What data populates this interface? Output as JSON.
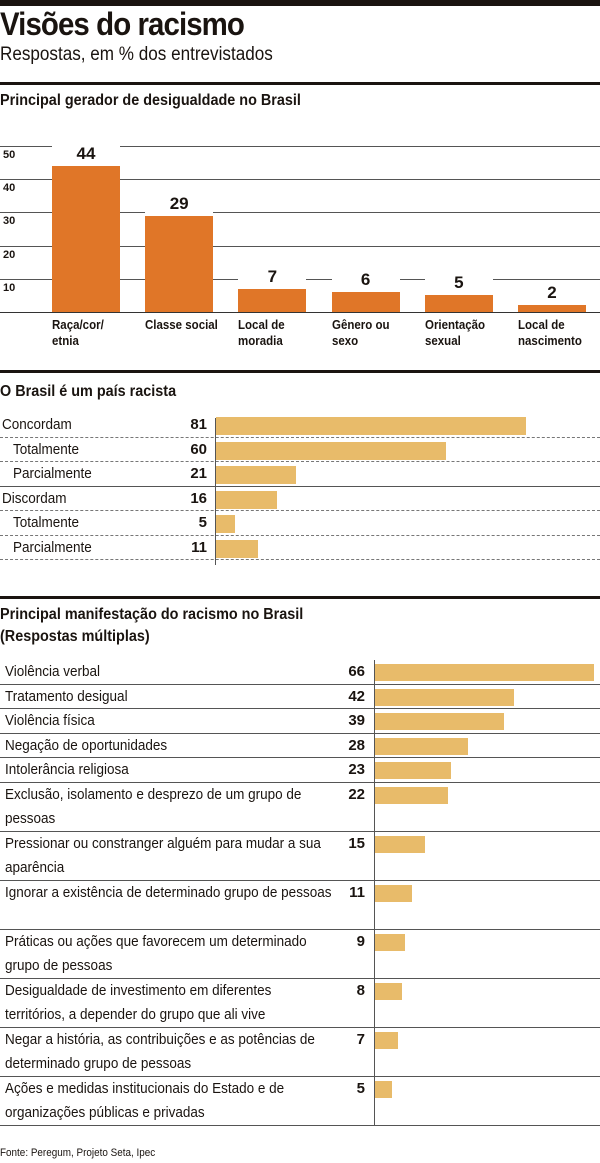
{
  "header": {
    "title": "Visões do racismo",
    "subtitle": "Respostas, em % dos entrevistados"
  },
  "colors": {
    "orange": "#e07628",
    "light": "#e8bb6a"
  },
  "chart_data": [
    {
      "type": "bar",
      "title": "Principal gerador de desigualdade no Brasil",
      "categories": [
        "Raça/cor/ etnia",
        "Classe social",
        "Local de moradia",
        "Gênero ou sexo",
        "Orientação sexual",
        "Local de nascimento"
      ],
      "values": [
        44,
        29,
        7,
        6,
        5,
        2
      ],
      "yticks": [
        "10",
        "20",
        "30",
        "40",
        "50"
      ],
      "ylim": [
        0,
        50
      ],
      "grid": true
    },
    {
      "type": "bar",
      "orientation": "horizontal",
      "title": "O Brasil é um país racista",
      "categories": [
        "Concordam",
        "Totalmente",
        "Parcialmente",
        "Discordam",
        "Totalmente",
        "Parcialmente"
      ],
      "values": [
        81,
        60,
        21,
        16,
        5,
        11
      ]
    },
    {
      "type": "bar",
      "orientation": "horizontal",
      "title": "Principal manifestação do racismo no Brasil",
      "subtitle": "(Respostas múltiplas)",
      "categories": [
        "Violência verbal",
        "Tratamento desigual",
        "Violência física",
        "Negação de oportunidades",
        "Intolerância religiosa",
        "Exclusão, isolamento e desprezo de um grupo de pessoas",
        "Pressionar ou constranger alguém para mudar a sua aparência",
        "Ignorar a existência de determinado grupo de pessoas",
        "Práticas ou ações que favorecem um determinado grupo de pessoas",
        "Desigualdade de investimento em diferentes territórios, a depender do grupo que ali vive",
        "Negar a história, as contribuições e as potências de determinado grupo de pessoas",
        "Ações e medidas institucionais do Estado e de organizações públicas e privadas"
      ],
      "values": [
        66,
        42,
        39,
        28,
        23,
        22,
        15,
        11,
        9,
        8,
        7,
        5
      ]
    }
  ],
  "footer": "Fonte: Peregum, Projeto Seta, Ipec"
}
